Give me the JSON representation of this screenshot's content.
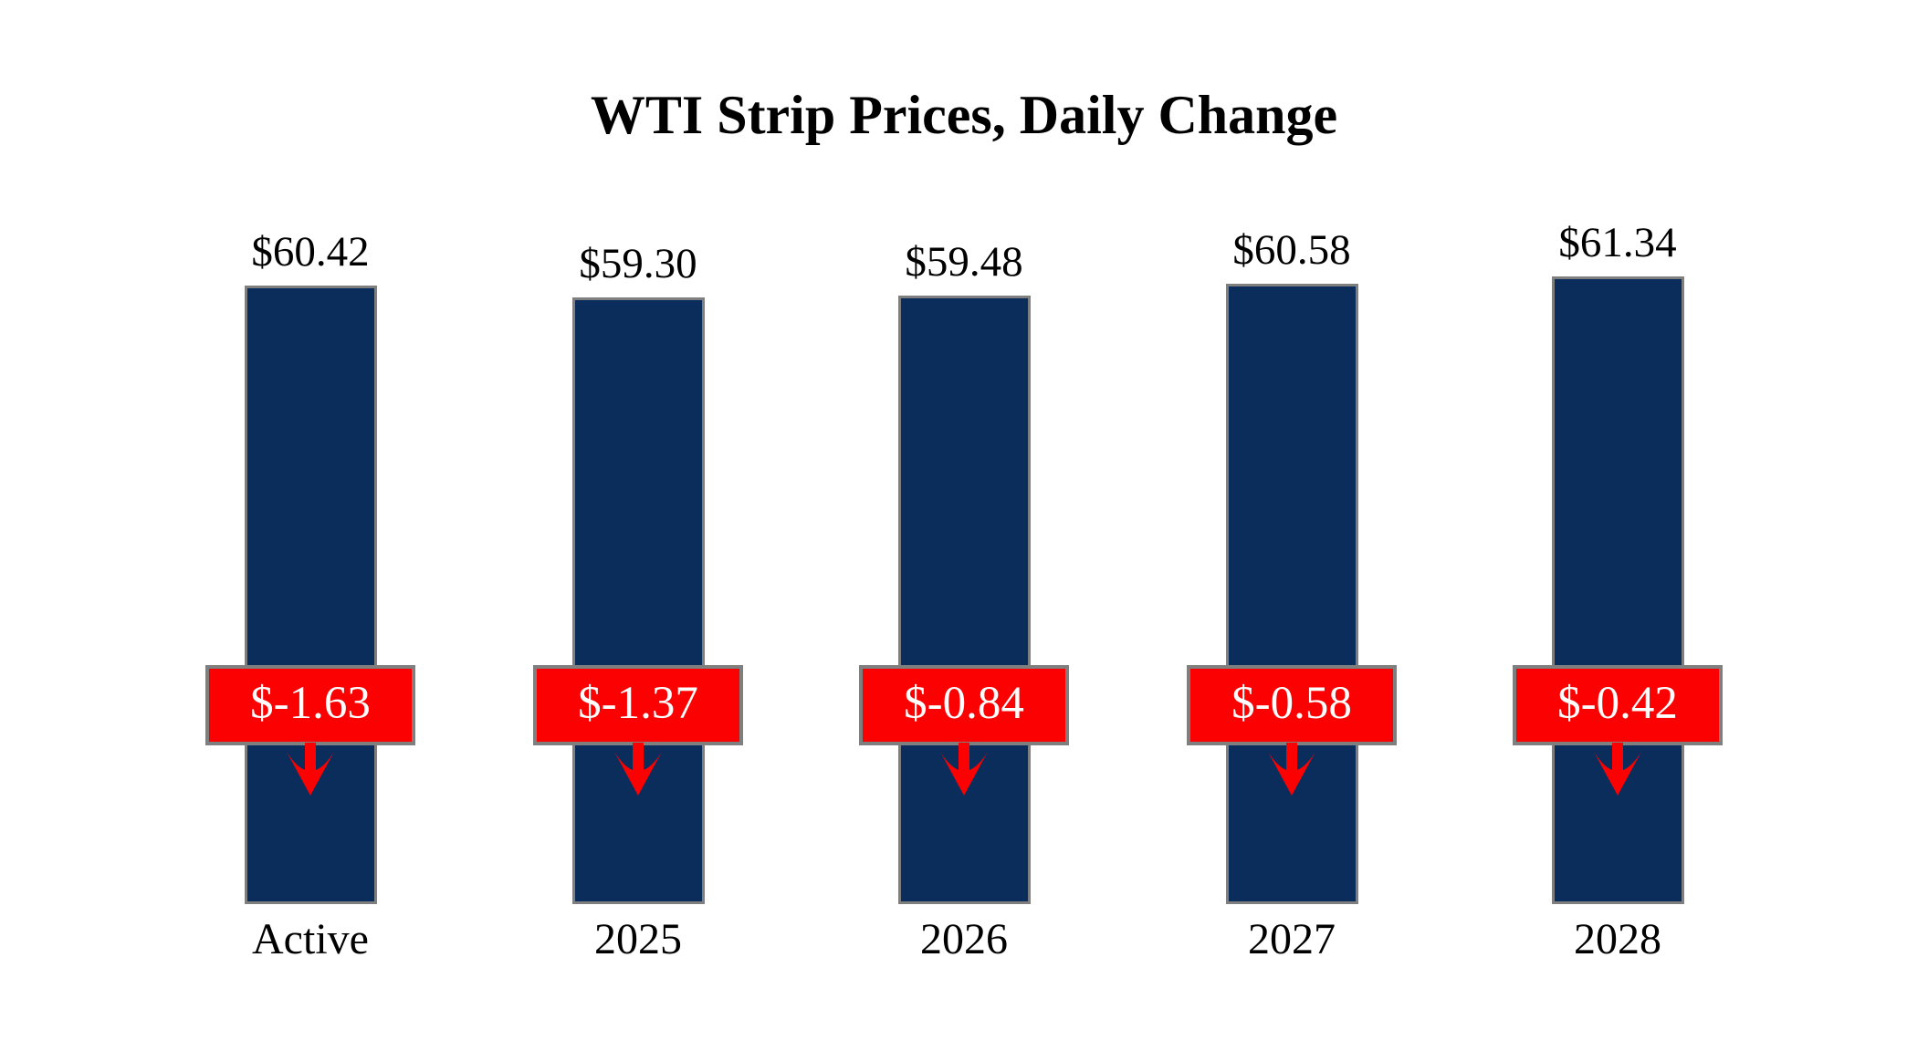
{
  "chart_data": {
    "type": "bar",
    "title": "WTI Strip Prices, Daily Change",
    "categories": [
      "Active",
      "2025",
      "2026",
      "2027",
      "2028"
    ],
    "values": [
      60.42,
      59.3,
      59.48,
      60.58,
      61.34
    ],
    "changes": [
      -1.63,
      -1.37,
      -0.84,
      -0.58,
      -0.42
    ],
    "value_labels": [
      "$60.42",
      "$59.30",
      "$59.48",
      "$60.58",
      "$61.34"
    ],
    "change_labels": [
      "$-1.63",
      "$-1.37",
      "$-0.84",
      "$-0.58",
      "$-0.42"
    ],
    "bar_baseline": 0,
    "grid": false,
    "legend_position": "none",
    "colors": {
      "bar_fill": "#0B2D5B",
      "bar_border": "#7F7F7F",
      "badge_fill": "#FC0101",
      "badge_border": "#7F7F7F",
      "badge_text": "#FFFFFF",
      "arrow": "#FC0101",
      "label_text": "#000000",
      "background": "#FFFFFF"
    }
  }
}
